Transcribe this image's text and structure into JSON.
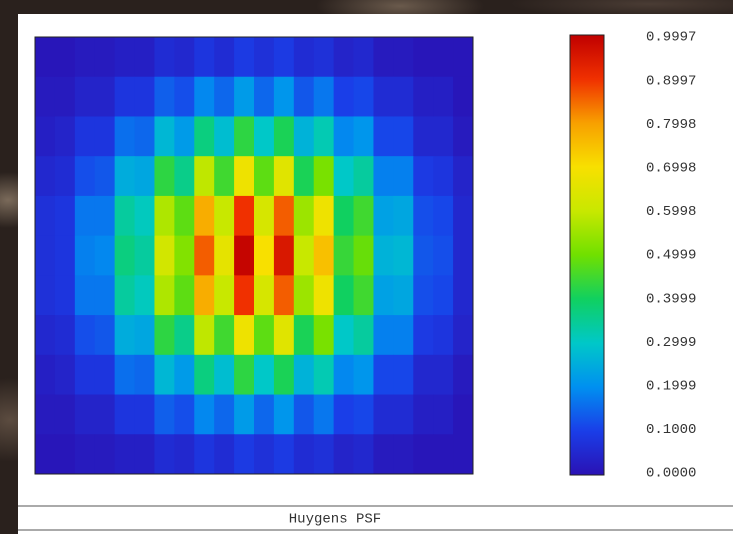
{
  "chart_data": {
    "type": "heatmap",
    "title": "Huygens PSF",
    "colormap": [
      "#2a12b4",
      "#1a3ee8",
      "#0090f0",
      "#00c8c8",
      "#10d060",
      "#70e000",
      "#c8e800",
      "#f8e000",
      "#f8a000",
      "#f03000",
      "#c00000"
    ],
    "zlim": [
      0,
      0.9997
    ],
    "zticks": [
      0.9997,
      0.8997,
      0.7998,
      0.6998,
      0.5998,
      0.4999,
      0.3999,
      0.2999,
      0.1999,
      {
        "value": 0.1,
        "label": "0.1000"
      },
      {
        "value": 0,
        "label": "0.0000"
      }
    ],
    "z": [
      [
        0.01,
        0.01,
        0.02,
        0.02,
        0.03,
        0.03,
        0.06,
        0.05,
        0.08,
        0.06,
        0.09,
        0.07,
        0.09,
        0.06,
        0.07,
        0.04,
        0.05,
        0.02,
        0.02,
        0.01,
        0.01,
        0.01
      ],
      [
        0.02,
        0.02,
        0.04,
        0.04,
        0.08,
        0.08,
        0.14,
        0.12,
        0.19,
        0.15,
        0.22,
        0.15,
        0.21,
        0.13,
        0.17,
        0.1,
        0.11,
        0.06,
        0.06,
        0.03,
        0.03,
        0.01
      ],
      [
        0.03,
        0.04,
        0.08,
        0.08,
        0.16,
        0.15,
        0.27,
        0.22,
        0.37,
        0.28,
        0.43,
        0.3,
        0.41,
        0.26,
        0.32,
        0.19,
        0.21,
        0.11,
        0.11,
        0.05,
        0.05,
        0.02
      ],
      [
        0.05,
        0.06,
        0.12,
        0.13,
        0.25,
        0.24,
        0.43,
        0.36,
        0.59,
        0.45,
        0.68,
        0.48,
        0.65,
        0.41,
        0.51,
        0.3,
        0.34,
        0.18,
        0.18,
        0.09,
        0.08,
        0.04
      ],
      [
        0.07,
        0.08,
        0.17,
        0.17,
        0.34,
        0.31,
        0.57,
        0.48,
        0.78,
        0.6,
        0.9,
        0.63,
        0.86,
        0.55,
        0.68,
        0.4,
        0.45,
        0.23,
        0.24,
        0.12,
        0.11,
        0.05
      ],
      [
        0.07,
        0.08,
        0.18,
        0.19,
        0.37,
        0.34,
        0.62,
        0.52,
        0.86,
        0.66,
        0.99,
        0.7,
        0.95,
        0.6,
        0.75,
        0.44,
        0.49,
        0.26,
        0.27,
        0.13,
        0.12,
        0.05
      ],
      [
        0.07,
        0.08,
        0.17,
        0.17,
        0.34,
        0.31,
        0.57,
        0.48,
        0.78,
        0.6,
        0.9,
        0.63,
        0.86,
        0.55,
        0.68,
        0.4,
        0.45,
        0.23,
        0.24,
        0.12,
        0.11,
        0.05
      ],
      [
        0.05,
        0.06,
        0.12,
        0.13,
        0.25,
        0.24,
        0.43,
        0.36,
        0.59,
        0.45,
        0.68,
        0.48,
        0.65,
        0.41,
        0.51,
        0.3,
        0.34,
        0.18,
        0.18,
        0.09,
        0.08,
        0.04
      ],
      [
        0.03,
        0.04,
        0.08,
        0.08,
        0.16,
        0.15,
        0.27,
        0.22,
        0.37,
        0.28,
        0.43,
        0.3,
        0.41,
        0.26,
        0.32,
        0.19,
        0.21,
        0.11,
        0.11,
        0.05,
        0.05,
        0.02
      ],
      [
        0.02,
        0.02,
        0.04,
        0.04,
        0.08,
        0.08,
        0.14,
        0.12,
        0.19,
        0.15,
        0.22,
        0.15,
        0.21,
        0.13,
        0.17,
        0.1,
        0.11,
        0.06,
        0.06,
        0.03,
        0.03,
        0.01
      ],
      [
        0.01,
        0.01,
        0.02,
        0.02,
        0.03,
        0.03,
        0.06,
        0.05,
        0.08,
        0.06,
        0.09,
        0.07,
        0.09,
        0.06,
        0.07,
        0.04,
        0.05,
        0.02,
        0.02,
        0.01,
        0.01,
        0.01
      ]
    ]
  }
}
